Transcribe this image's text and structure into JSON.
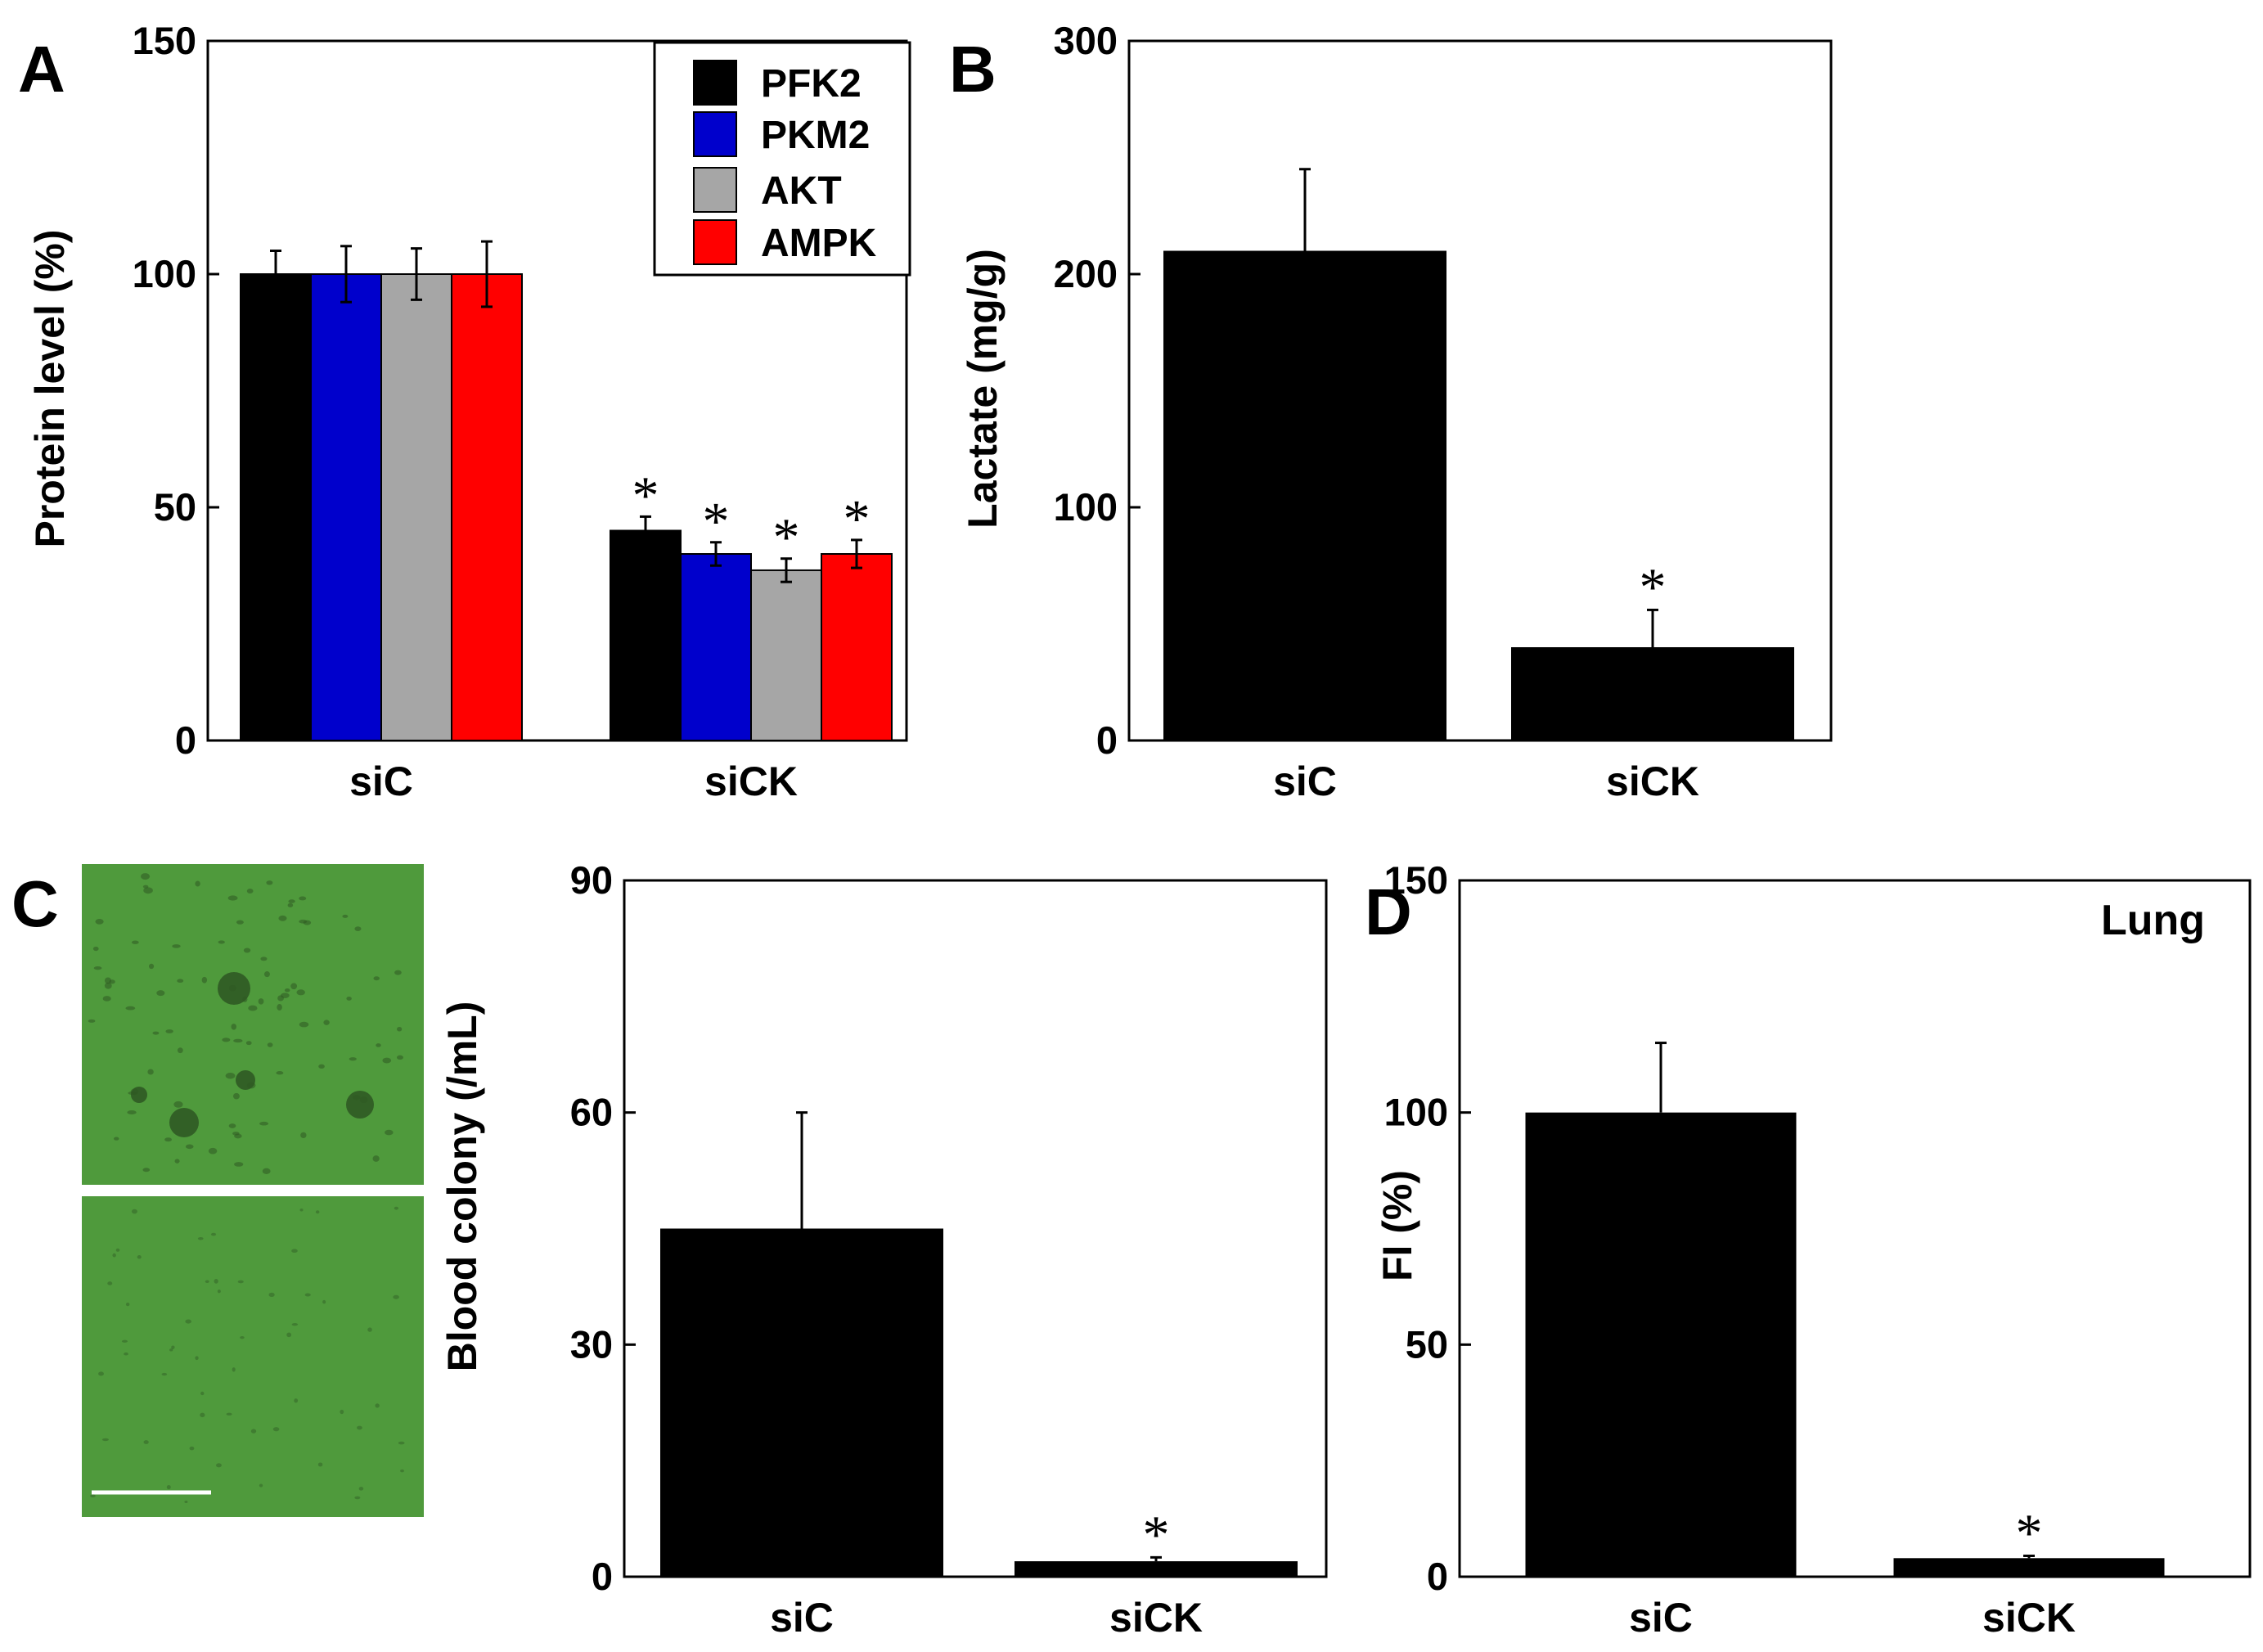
{
  "colors": {
    "PFK2": "#000000",
    "PKM2": "#0000cc",
    "AKT": "#a6a6a6",
    "AMPK": "#ff0000",
    "bar": "#000000",
    "micrograph": "#4f9a3c",
    "cell": "#2f5a23"
  },
  "panel_labels": {
    "a": "A",
    "b": "B",
    "c": "C",
    "d": "D"
  },
  "micrograph_c": {
    "description_icon": "cell-colony-micrograph-icon",
    "scale_bar_color": "#ffffff"
  },
  "chart_data": [
    {
      "id": "A",
      "type": "bar",
      "categories": [
        "siC",
        "siCK"
      ],
      "series": [
        {
          "name": "PFK2",
          "values": [
            100,
            45
          ],
          "errors": [
            5,
            3
          ],
          "significance": [
            "",
            "*"
          ]
        },
        {
          "name": "PKM2",
          "values": [
            100,
            40
          ],
          "errors": [
            6,
            2.5
          ],
          "significance": [
            "",
            "*"
          ]
        },
        {
          "name": "AKT",
          "values": [
            100,
            36.5
          ],
          "errors": [
            5.5,
            2.5
          ],
          "significance": [
            "",
            "*"
          ]
        },
        {
          "name": "AMPK",
          "values": [
            100,
            40
          ],
          "errors": [
            7,
            3
          ],
          "significance": [
            "",
            "*"
          ]
        }
      ],
      "ylabel": "Protein level (%)",
      "ylim": [
        0,
        150
      ],
      "yticks": [
        "0",
        "50",
        "100",
        "150"
      ],
      "legend_position": "top-right"
    },
    {
      "id": "B",
      "type": "bar",
      "categories": [
        "siC",
        "siCK"
      ],
      "values": [
        210,
        40
      ],
      "errors": [
        35,
        16
      ],
      "significance": [
        "",
        "*"
      ],
      "ylabel": "Lactate (mg/g)",
      "ylim": [
        0,
        300
      ],
      "yticks": [
        "0",
        "100",
        "200",
        "300"
      ]
    },
    {
      "id": "C",
      "type": "bar",
      "categories": [
        "siC",
        "siCK"
      ],
      "values": [
        45,
        2
      ],
      "errors": [
        15,
        0.5
      ],
      "significance": [
        "",
        "*"
      ],
      "ylabel": "Blood colony (/mL)",
      "ylim": [
        0,
        90
      ],
      "yticks": [
        "0",
        "30",
        "60",
        "90"
      ]
    },
    {
      "id": "D",
      "type": "bar",
      "categories": [
        "siC",
        "siCK"
      ],
      "values": [
        100,
        4
      ],
      "errors": [
        15,
        0.5
      ],
      "significance": [
        "",
        "*"
      ],
      "ylabel": "FI (%)",
      "ylim": [
        0,
        150
      ],
      "yticks": [
        "0",
        "50",
        "100",
        "150"
      ],
      "annotation": "Lung"
    }
  ]
}
